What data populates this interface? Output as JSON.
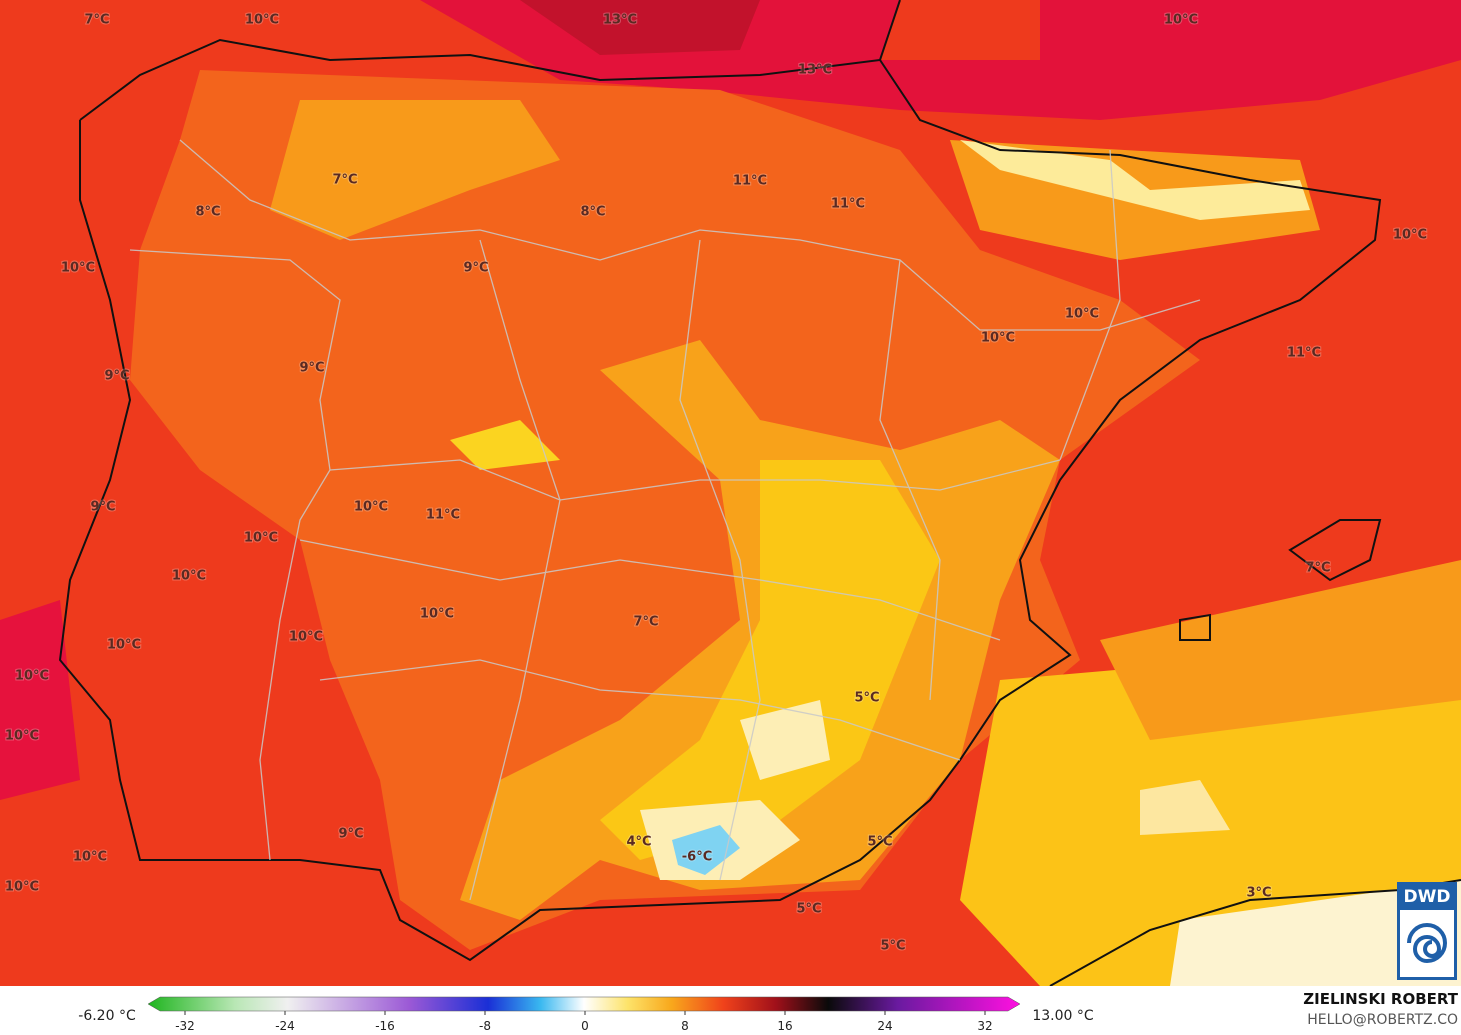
{
  "map": {
    "labels": [
      "7°C",
      "10°C",
      "13°C",
      "13°C",
      "10°C",
      "7°C",
      "8°C",
      "8°C",
      "11°C",
      "11°C",
      "10°C",
      "10°C",
      "9°C",
      "10°C",
      "10°C",
      "11°C",
      "9°C",
      "9°C",
      "9°C",
      "10°C",
      "11°C",
      "10°C",
      "10°C",
      "7°C",
      "10°C",
      "7°C",
      "10°C",
      "10°C",
      "10°C",
      "5°C",
      "10°C",
      "9°C",
      "4°C",
      "-6°C",
      "5°C",
      "10°C",
      "10°C",
      "5°C",
      "3°C",
      "5°C"
    ]
  },
  "legend": {
    "min_label": "-6.20 °C",
    "max_label": "13.00 °C",
    "ticks": [
      -32,
      -24,
      -16,
      -8,
      0,
      8,
      16,
      24,
      32
    ]
  },
  "credit": {
    "author": "ZIELINSKI ROBERT",
    "email": "HELLO@ROBERTZ.CO",
    "logo": "DWD"
  }
}
